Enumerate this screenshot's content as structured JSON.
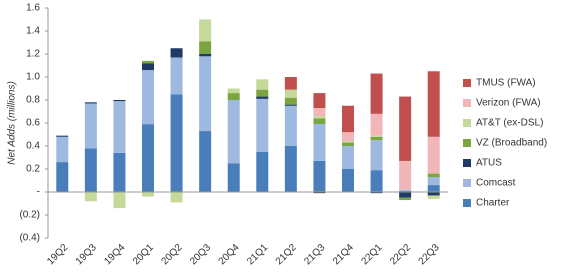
{
  "chart_data": {
    "type": "stacked-bar",
    "y_label": "Net Adds (millions)",
    "categories": [
      "19Q2",
      "19Q3",
      "19Q4",
      "20Q1",
      "20Q2",
      "20Q3",
      "20Q4",
      "21Q1",
      "21Q2",
      "21Q3",
      "21Q4",
      "22Q1",
      "22Q2",
      "22Q3"
    ],
    "series": [
      {
        "name": "Charter",
        "color": "#4a7ebb",
        "values": [
          0.26,
          0.38,
          0.34,
          0.59,
          0.85,
          0.53,
          0.25,
          0.35,
          0.4,
          0.27,
          0.2,
          0.19,
          0.01,
          0.06
        ]
      },
      {
        "name": "Comcast",
        "color": "#9db9e0",
        "values": [
          0.22,
          0.39,
          0.45,
          0.47,
          0.32,
          0.65,
          0.55,
          0.46,
          0.35,
          0.32,
          0.2,
          0.26,
          0.01,
          0.07
        ]
      },
      {
        "name": "ATUS",
        "color": "#1f3a64",
        "values": [
          0.01,
          0.01,
          0.01,
          0.06,
          0.08,
          0.02,
          0,
          0.02,
          0.01,
          -0.01,
          0,
          -0.01,
          -0.05,
          -0.03
        ]
      },
      {
        "name": "VZ (Broadband)",
        "color": "#7aa540",
        "values": [
          0,
          0,
          0,
          0.02,
          0,
          0.11,
          0.06,
          0.06,
          0.06,
          0.05,
          0.03,
          0.03,
          -0.02,
          0.03
        ]
      },
      {
        "name": "AT&T (ex-DSL)",
        "color": "#c4d99a",
        "values": [
          0,
          -0.08,
          -0.14,
          -0.04,
          -0.09,
          0.19,
          0.04,
          0.09,
          0.07,
          0.02,
          0.01,
          0.01,
          0,
          -0.03
        ]
      },
      {
        "name": "Verizon (FWA)",
        "color": "#f2b6b8",
        "values": [
          0,
          0,
          0,
          0,
          0,
          0,
          0,
          0,
          0,
          0.07,
          0.08,
          0.19,
          0.25,
          0.32
        ]
      },
      {
        "name": "TMUS (FWA)",
        "color": "#c0504d",
        "values": [
          0,
          0,
          0,
          0,
          0,
          0,
          0,
          0,
          0.11,
          0.13,
          0.23,
          0.35,
          0.56,
          0.57
        ]
      }
    ],
    "ylim": [
      -0.4,
      1.6
    ],
    "yticks": [
      {
        "value": -0.4,
        "label": "(0.4)"
      },
      {
        "value": -0.2,
        "label": "(0.2)"
      },
      {
        "value": 0,
        "label": "-"
      },
      0.2,
      0.4,
      0.6,
      0.8,
      {
        "value": 1,
        "label": "1.0"
      },
      1.2,
      1.4,
      1.6
    ],
    "legend": "right"
  }
}
